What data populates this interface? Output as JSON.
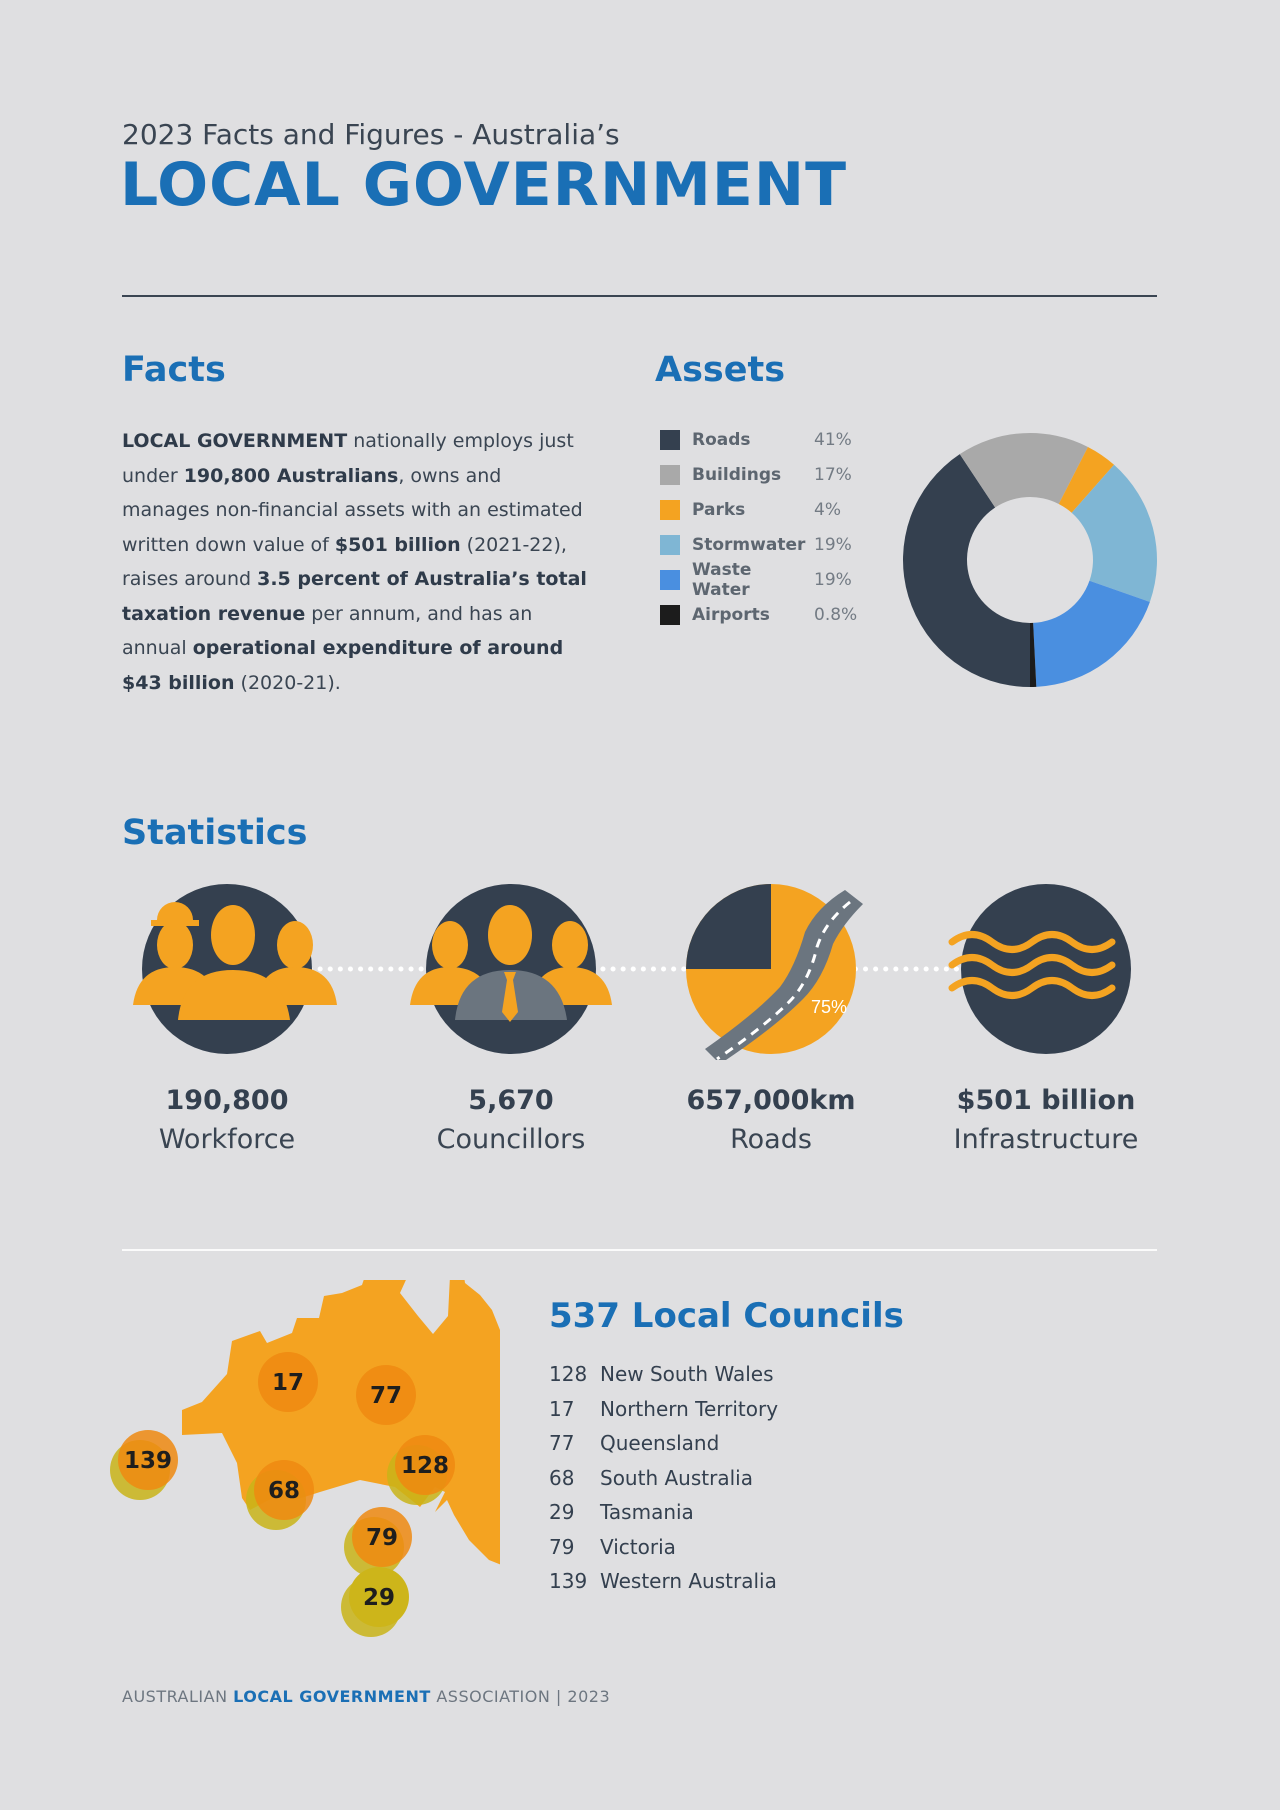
{
  "header": {
    "subtitle": "2023 Facts and Figures - Australia’s",
    "title": "LOCAL GOVERNMENT"
  },
  "facts": {
    "heading": "Facts",
    "parts": [
      {
        "t": "LOCAL GOVERNMENT",
        "b": true
      },
      {
        "t": " nationally employs just under "
      },
      {
        "t": "190,800 Australians",
        "b": true
      },
      {
        "t": ", owns and manages non-financial assets with an estimated written down value of "
      },
      {
        "t": "$501 billion",
        "b": true
      },
      {
        "t": " (2021-22), raises around "
      },
      {
        "t": "3.5 percent of Australia’s total taxation revenue",
        "b": true
      },
      {
        "t": " per annum, and has an annual "
      },
      {
        "t": "operational expenditure of around $43 billion",
        "b": true
      },
      {
        "t": " (2020-21)."
      }
    ]
  },
  "assets": {
    "heading": "Assets"
  },
  "chart_data": {
    "type": "pie",
    "donut": true,
    "categories": [
      "Roads",
      "Buildings",
      "Parks",
      "Stormwater",
      "Waste Water",
      "Airports"
    ],
    "labels": [
      "41%",
      "17%",
      "4%",
      "19%",
      "19%",
      "0.8%"
    ],
    "values": [
      41,
      17,
      4,
      19,
      19,
      0.8
    ],
    "colors": [
      "#34404f",
      "#a9a9a9",
      "#f4a321",
      "#7fb6d4",
      "#4a8fe0",
      "#1c1c1c"
    ],
    "legend": "left"
  },
  "statistics": {
    "heading": "Statistics",
    "items": [
      {
        "value": "190,800",
        "label": "Workforce",
        "icon": "workers-icon"
      },
      {
        "value": "5,670",
        "label": "Councillors",
        "icon": "councillors-icon"
      },
      {
        "value": "657,000km",
        "label": "Roads",
        "icon": "road-icon",
        "pie_label": "75%",
        "pie_percent": 75
      },
      {
        "value": "$501 billion",
        "label": "Infrastructure",
        "icon": "water-waves-icon"
      }
    ]
  },
  "councils": {
    "heading": "537 Local Councils",
    "rows": [
      {
        "n": "128",
        "s": "New South Wales"
      },
      {
        "n": "17",
        "s": "Northern Territory"
      },
      {
        "n": "77",
        "s": "Queensland"
      },
      {
        "n": "68",
        "s": "South Australia"
      },
      {
        "n": "29",
        "s": "Tasmania"
      },
      {
        "n": "79",
        "s": "Victoria"
      },
      {
        "n": "139",
        "s": "Western Australia"
      }
    ],
    "map_labels": [
      "17",
      "77",
      "139",
      "128",
      "68",
      "79",
      "29"
    ]
  },
  "footer": {
    "a": "AUSTRALIAN ",
    "b": "LOCAL GOVERNMENT",
    "c": " ASSOCIATION | 2023"
  },
  "colors": {
    "blue": "#1a6fb5",
    "navy": "#34404f",
    "orange": "#f4a321"
  }
}
